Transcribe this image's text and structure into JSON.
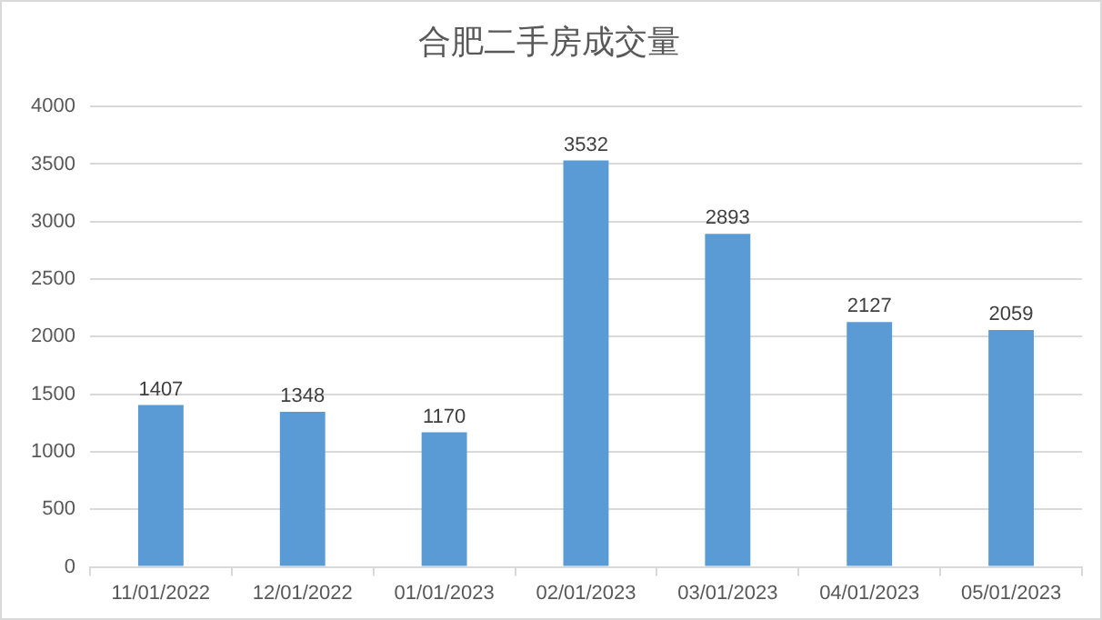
{
  "chart_data": {
    "type": "bar",
    "title": "合肥二手房成交量",
    "categories": [
      "11/01/2022",
      "12/01/2022",
      "01/01/2023",
      "02/01/2023",
      "03/01/2023",
      "04/01/2023",
      "05/01/2023"
    ],
    "values": [
      1407,
      1348,
      1170,
      3532,
      2893,
      2127,
      2059
    ],
    "color": "#5b9bd5",
    "ylim": [
      0,
      4000
    ],
    "yticks": [
      0,
      500,
      1000,
      1500,
      2000,
      2500,
      3000,
      3500,
      4000
    ],
    "grid": "y",
    "data_labels": true
  }
}
